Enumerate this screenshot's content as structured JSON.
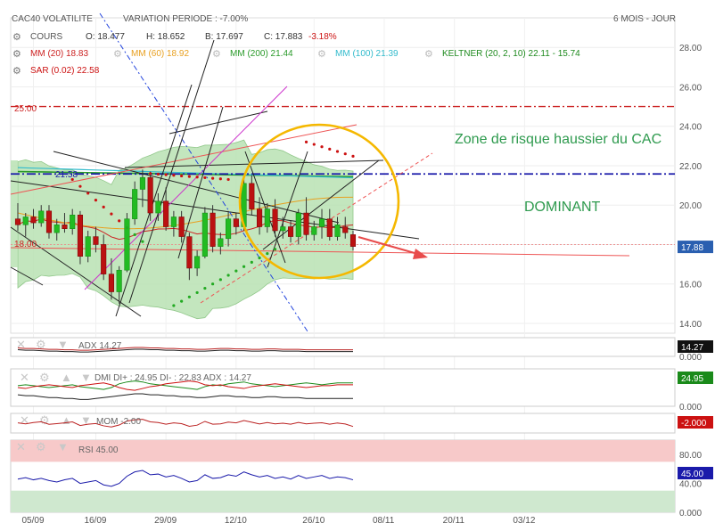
{
  "header": {
    "instrument": "CAC40 VOLATILITE",
    "variation": "VARIATION PERIODE : -7.00%",
    "period": "6 MOIS - JOUR"
  },
  "legend": {
    "cours": {
      "label": "COURS",
      "o": "O: 18.477",
      "h": "H: 18.652",
      "b": "B: 17.697",
      "c": "C: 17.883",
      "chg": "-3.18%"
    },
    "mm20": "MM (20) 18.83",
    "mm60": "MM (60) 18.92",
    "mm200": "MM (200) 21.44",
    "mm100": "MM (100) 21.39",
    "keltner": "KELTNER (20, 2, 10) 22.11 - 15.74",
    "sar": "SAR (0.02) 22.58"
  },
  "annotations": {
    "zone": "Zone de risque haussier du CAC",
    "dominant": "DOMINANT",
    "level25": "25.00",
    "level2158": "21.58",
    "level18": "18.00"
  },
  "colors": {
    "up": "#22bb22",
    "down": "#bb1111",
    "keltner_fill": "#b9e2b3",
    "mm20": "#cc2222",
    "mm60": "#e8a020",
    "mm200": "#2a9a2a",
    "mm100": "#33bbcc",
    "sar": "#cc1111",
    "circle": "#f5b800",
    "level25": "#cc2222",
    "dominant_line": "#1a1aaa",
    "trend_magenta": "#cc33cc",
    "trend_blue": "#2244dd"
  },
  "chart_data": [
    {
      "type": "candlestick",
      "name": "CAC40 VOLATILITE",
      "ylim": [
        13.5,
        29.5
      ],
      "y_ticks": [
        "28.00",
        "26.00",
        "24.00",
        "22.00",
        "20.00",
        "18.00",
        "16.00",
        "14.00"
      ],
      "x_ticks": [
        "05/09",
        "16/09",
        "29/09",
        "12/10",
        "26/10",
        "08/11",
        "20/11",
        "03/12"
      ],
      "last_price": "17.88",
      "horizontal_levels": [
        25.0,
        21.58,
        18.0
      ],
      "candles": [
        {
          "o": 19.3,
          "h": 20.1,
          "l": 18.7,
          "c": 19.0
        },
        {
          "o": 19.0,
          "h": 19.6,
          "l": 18.4,
          "c": 19.4
        },
        {
          "o": 19.4,
          "h": 19.8,
          "l": 18.8,
          "c": 19.1
        },
        {
          "o": 19.1,
          "h": 20.0,
          "l": 18.9,
          "c": 19.7
        },
        {
          "o": 19.7,
          "h": 20.0,
          "l": 18.3,
          "c": 18.6
        },
        {
          "o": 18.6,
          "h": 19.3,
          "l": 18.2,
          "c": 19.0
        },
        {
          "o": 19.0,
          "h": 19.6,
          "l": 18.6,
          "c": 18.8
        },
        {
          "o": 18.8,
          "h": 19.8,
          "l": 18.5,
          "c": 19.5
        },
        {
          "o": 19.5,
          "h": 19.7,
          "l": 17.0,
          "c": 17.4
        },
        {
          "o": 17.4,
          "h": 18.7,
          "l": 17.1,
          "c": 18.4
        },
        {
          "o": 18.4,
          "h": 18.9,
          "l": 17.6,
          "c": 18.0
        },
        {
          "o": 18.0,
          "h": 18.5,
          "l": 16.2,
          "c": 16.5
        },
        {
          "o": 16.5,
          "h": 17.3,
          "l": 15.2,
          "c": 15.6
        },
        {
          "o": 15.6,
          "h": 16.9,
          "l": 15.0,
          "c": 16.7
        },
        {
          "o": 16.7,
          "h": 19.6,
          "l": 16.6,
          "c": 19.3
        },
        {
          "o": 19.3,
          "h": 21.2,
          "l": 19.0,
          "c": 20.8
        },
        {
          "o": 20.8,
          "h": 21.8,
          "l": 19.9,
          "c": 21.4
        },
        {
          "o": 21.4,
          "h": 21.7,
          "l": 19.2,
          "c": 19.6
        },
        {
          "o": 19.6,
          "h": 20.6,
          "l": 19.2,
          "c": 20.2
        },
        {
          "o": 20.2,
          "h": 20.9,
          "l": 18.7,
          "c": 18.9
        },
        {
          "o": 18.9,
          "h": 19.7,
          "l": 18.4,
          "c": 19.4
        },
        {
          "o": 19.4,
          "h": 19.7,
          "l": 18.1,
          "c": 18.4
        },
        {
          "o": 18.4,
          "h": 18.6,
          "l": 16.2,
          "c": 16.8
        },
        {
          "o": 16.8,
          "h": 17.7,
          "l": 16.4,
          "c": 17.4
        },
        {
          "o": 17.4,
          "h": 19.9,
          "l": 17.3,
          "c": 19.6
        },
        {
          "o": 19.6,
          "h": 20.0,
          "l": 17.6,
          "c": 17.9
        },
        {
          "o": 17.9,
          "h": 18.6,
          "l": 17.5,
          "c": 18.3
        },
        {
          "o": 18.3,
          "h": 19.7,
          "l": 17.9,
          "c": 19.3
        },
        {
          "o": 19.3,
          "h": 19.6,
          "l": 18.5,
          "c": 18.9
        },
        {
          "o": 18.9,
          "h": 21.4,
          "l": 18.7,
          "c": 21.1
        },
        {
          "o": 21.1,
          "h": 21.5,
          "l": 19.5,
          "c": 19.8
        },
        {
          "o": 19.8,
          "h": 20.4,
          "l": 18.5,
          "c": 18.9
        },
        {
          "o": 18.9,
          "h": 20.1,
          "l": 18.6,
          "c": 19.8
        },
        {
          "o": 19.8,
          "h": 20.3,
          "l": 18.4,
          "c": 18.7
        },
        {
          "o": 18.7,
          "h": 19.4,
          "l": 18.3,
          "c": 18.9
        },
        {
          "o": 18.9,
          "h": 19.2,
          "l": 18.1,
          "c": 18.4
        },
        {
          "o": 18.4,
          "h": 19.8,
          "l": 18.0,
          "c": 19.6
        },
        {
          "o": 19.6,
          "h": 20.4,
          "l": 18.2,
          "c": 18.5
        },
        {
          "o": 18.5,
          "h": 19.2,
          "l": 18.2,
          "c": 18.9
        },
        {
          "o": 18.9,
          "h": 19.8,
          "l": 18.3,
          "c": 19.3
        },
        {
          "o": 19.3,
          "h": 19.8,
          "l": 18.2,
          "c": 18.4
        },
        {
          "o": 18.4,
          "h": 19.4,
          "l": 18.2,
          "c": 19.0
        },
        {
          "o": 18.9,
          "h": 19.4,
          "l": 18.3,
          "c": 18.6
        },
        {
          "o": 18.5,
          "h": 18.7,
          "l": 17.7,
          "c": 17.9
        }
      ]
    },
    {
      "type": "line",
      "name": "ADX",
      "label": "ADX",
      "value": "14.27",
      "ylim": [
        0,
        40
      ],
      "y_ticks": [
        "0.000"
      ],
      "values": [
        18,
        17,
        17,
        16,
        15,
        15,
        14,
        14,
        13,
        13,
        14,
        15,
        16,
        17,
        18,
        19,
        19,
        18,
        18,
        17,
        17,
        16,
        16,
        15,
        15,
        16,
        17,
        17,
        16,
        16,
        15,
        15,
        16,
        16,
        15,
        15,
        15,
        14,
        14,
        14,
        14,
        14,
        14,
        14
      ]
    },
    {
      "type": "line",
      "name": "DMI",
      "label": "DMI DI+ : 24.95 DI- : 22.83 ADX : 14.27",
      "value": "24.95",
      "ylim": [
        0,
        40
      ],
      "y_ticks": [
        "0.000"
      ],
      "series": [
        {
          "name": "DI+",
          "values": [
            22,
            23,
            22,
            21,
            20,
            21,
            22,
            23,
            21,
            20,
            19,
            18,
            20,
            24,
            26,
            27,
            26,
            24,
            23,
            22,
            21,
            20,
            19,
            18,
            21,
            23,
            22,
            24,
            25,
            26,
            24,
            23,
            22,
            21,
            22,
            23,
            24,
            25,
            24,
            23,
            24,
            25,
            25,
            25
          ]
        },
        {
          "name": "DI-",
          "values": [
            20,
            19,
            21,
            22,
            23,
            22,
            21,
            20,
            22,
            23,
            24,
            25,
            23,
            20,
            18,
            17,
            19,
            21,
            22,
            24,
            25,
            26,
            27,
            26,
            23,
            22,
            23,
            21,
            20,
            19,
            21,
            22,
            23,
            24,
            23,
            22,
            21,
            20,
            21,
            22,
            22,
            23,
            23,
            23
          ]
        }
      ]
    },
    {
      "type": "line",
      "name": "MOM",
      "label": "MOM",
      "value": "-2.00",
      "badge": "-2.000",
      "ylim": [
        -6,
        6
      ],
      "values": [
        0.2,
        -0.4,
        0.4,
        0.9,
        -0.7,
        -0.3,
        0.2,
        0.8,
        -1.4,
        -0.6,
        -0.2,
        -1.6,
        -2.3,
        -1.1,
        1.3,
        2.1,
        2.4,
        0.8,
        0.4,
        -0.6,
        0.2,
        -0.3,
        -1.9,
        -1.2,
        1.1,
        -0.6,
        -0.4,
        0.7,
        0.2,
        1.6,
        0.6,
        -0.5,
        0.4,
        -0.4,
        0.0,
        -0.6,
        0.5,
        -0.4,
        0.0,
        0.3,
        -0.6,
        0.1,
        -0.5,
        -2.0
      ]
    },
    {
      "type": "line",
      "name": "RSI",
      "label": "RSI",
      "value": "45.00",
      "ylim": [
        0,
        100
      ],
      "y_ticks": [
        "80.00",
        "40.00",
        "0.000"
      ],
      "zones": [
        70,
        30
      ],
      "values": [
        46,
        48,
        45,
        47,
        44,
        42,
        45,
        47,
        40,
        42,
        44,
        38,
        36,
        40,
        50,
        56,
        58,
        52,
        53,
        49,
        51,
        47,
        42,
        44,
        52,
        47,
        48,
        52,
        50,
        56,
        52,
        49,
        51,
        47,
        49,
        46,
        51,
        47,
        49,
        51,
        47,
        49,
        48,
        45
      ]
    }
  ]
}
